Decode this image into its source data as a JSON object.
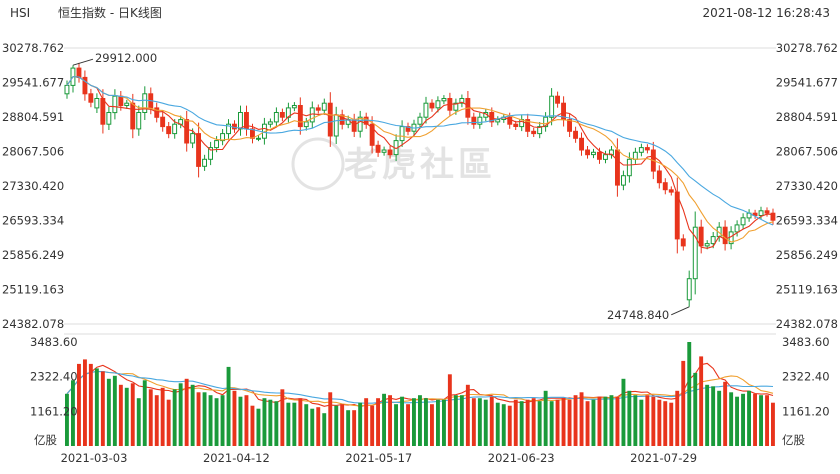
{
  "header": {
    "symbol": "HSI",
    "title": "恒生指数 - 日K线图",
    "timestamp": "2021-08-12 16:28:43"
  },
  "watermark": "老虎社區",
  "chart_data": {
    "type": "candlestick",
    "price_axis": {
      "ticks": [
        "30278.762",
        "29541.677",
        "28804.591",
        "28067.506",
        "27330.420",
        "26593.334",
        "25856.249",
        "25119.163",
        "24382.078"
      ],
      "min": 24382.078,
      "max": 30278.762
    },
    "volume_axis": {
      "ticks": [
        "3483.60",
        "2322.40",
        "1161.20"
      ],
      "unit": "亿股",
      "max": 3483.6
    },
    "x_labels": [
      "2021-03-03",
      "2021-04-12",
      "2021-05-17",
      "2021-06-23",
      "2021-07-29"
    ],
    "annotations": {
      "high": "29912.000",
      "low": "24748.840"
    },
    "colors": {
      "up": "#1a9a3a",
      "down": "#e8341c",
      "ma_short": "#e8341c",
      "ma_mid": "#f0a030",
      "ma_long": "#4aa8e0",
      "vol_ma_short": "#e8341c",
      "vol_ma_mid": "#f0a030",
      "vol_ma_long": "#4aa8e0"
    },
    "closes": [
      29480,
      29850,
      29650,
      29300,
      29120,
      29200,
      28650,
      28900,
      29250,
      29050,
      29100,
      28550,
      28900,
      29300,
      29000,
      28800,
      28600,
      28450,
      28650,
      28750,
      28250,
      28450,
      27750,
      27900,
      28150,
      28300,
      28450,
      28650,
      28550,
      28900,
      28550,
      28350,
      28350,
      28650,
      28700,
      28900,
      28800,
      29000,
      29050,
      28600,
      28700,
      29000,
      28950,
      29100,
      28400,
      28850,
      28650,
      28750,
      28500,
      28800,
      28650,
      28200,
      28050,
      28100,
      28000,
      28300,
      28600,
      28500,
      28650,
      28800,
      29100,
      29000,
      29150,
      29200,
      28950,
      29100,
      29200,
      28800,
      28650,
      28800,
      28900,
      28700,
      28750,
      28800,
      28650,
      28600,
      28750,
      28500,
      28450,
      28600,
      28800,
      29250,
      29100,
      28750,
      28500,
      28350,
      28100,
      28000,
      28050,
      27900,
      28000,
      28100,
      27350,
      27550,
      27900,
      28050,
      28150,
      28100,
      27650,
      27400,
      27250,
      27200,
      26200,
      26050,
      25350,
      26450,
      26050,
      26100,
      26250,
      26450,
      26100,
      26350,
      26500,
      26650,
      26750,
      26700,
      26800,
      26750,
      26600
    ],
    "opens": [
      29300,
      29480,
      29850,
      29650,
      29300,
      29000,
      29200,
      28650,
      28900,
      29250,
      29050,
      29100,
      28550,
      28900,
      29300,
      29000,
      28800,
      28600,
      28450,
      28650,
      28750,
      28250,
      28450,
      27750,
      27900,
      28150,
      28300,
      28450,
      28650,
      28550,
      28900,
      28550,
      28350,
      28350,
      28650,
      28700,
      28900,
      28800,
      29000,
      29050,
      28600,
      28700,
      29000,
      28950,
      29100,
      28400,
      28850,
      28650,
      28750,
      28500,
      28800,
      28650,
      28200,
      28050,
      28100,
      28000,
      28300,
      28600,
      28500,
      28650,
      28800,
      29100,
      29000,
      29150,
      29200,
      28950,
      29100,
      29200,
      28800,
      28650,
      28800,
      28900,
      28700,
      28750,
      28800,
      28650,
      28600,
      28750,
      28500,
      28450,
      28600,
      28800,
      29250,
      29100,
      28750,
      28500,
      28350,
      28100,
      28000,
      28050,
      27900,
      28000,
      28100,
      27350,
      27550,
      27900,
      28050,
      28150,
      28100,
      27650,
      27400,
      27250,
      27200,
      26200,
      24900,
      25350,
      26450,
      26050,
      26100,
      26250,
      26450,
      26100,
      26350,
      26500,
      26650,
      26750,
      26700,
      26800,
      26750
    ],
    "volumes": [
      1750,
      2200,
      2750,
      2900,
      2750,
      2600,
      2500,
      2250,
      2350,
      2050,
      1950,
      2100,
      1600,
      2200,
      1900,
      1700,
      1950,
      1550,
      1900,
      2100,
      2250,
      2050,
      1800,
      1800,
      1700,
      1600,
      1700,
      2650,
      1850,
      1650,
      1700,
      1350,
      1250,
      1600,
      1550,
      1500,
      1900,
      1450,
      1450,
      1600,
      1400,
      1250,
      1300,
      1100,
      1800,
      1350,
      1400,
      1200,
      1200,
      1450,
      1600,
      1350,
      1600,
      1750,
      1700,
      1400,
      1650,
      1400,
      1600,
      1700,
      1600,
      1400,
      1550,
      1550,
      2400,
      1700,
      1700,
      2050,
      1600,
      1600,
      1550,
      1650,
      1450,
      1400,
      1350,
      1550,
      1500,
      1550,
      1600,
      1500,
      1850,
      1500,
      1550,
      1600,
      1550,
      1700,
      1800,
      1500,
      1550,
      1650,
      1650,
      1700,
      1650,
      2250,
      1850,
      1700,
      1550,
      1700,
      1650,
      1550,
      1500,
      1450,
      1850,
      2850,
      3483,
      2450,
      3000,
      2050,
      2000,
      1850,
      2150,
      1800,
      1650,
      1750,
      1850,
      1750,
      1700,
      1700,
      1450
    ]
  }
}
